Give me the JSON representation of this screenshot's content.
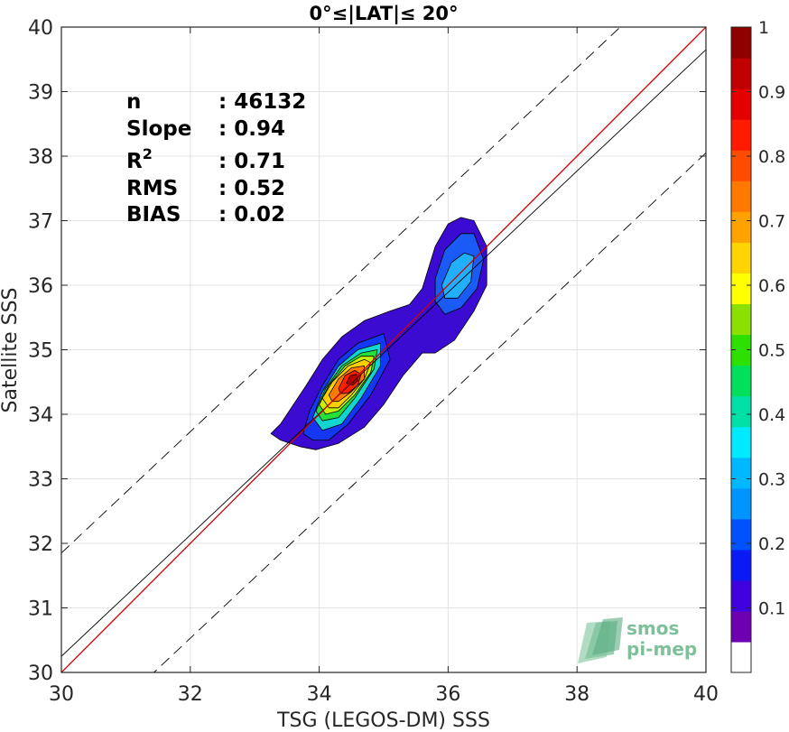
{
  "chart_data": {
    "type": "contour",
    "title": "0°≤|LAT|≤ 20°",
    "xlabel": "TSG (LEGOS-DM) SSS",
    "ylabel": "Satellite SSS",
    "xlim": [
      30,
      40
    ],
    "ylim": [
      30,
      40
    ],
    "xticks": [
      30,
      32,
      34,
      36,
      38,
      40
    ],
    "yticks": [
      30,
      31,
      32,
      33,
      34,
      35,
      36,
      37,
      38,
      39,
      40
    ],
    "grid": true,
    "colorbar": {
      "ticks": [
        0.1,
        0.2,
        0.3,
        0.4,
        0.5,
        0.6,
        0.7,
        0.8,
        0.9,
        1
      ],
      "labels": [
        "0.1",
        "0.2",
        "0.3",
        "0.4",
        "0.5",
        "0.6",
        "0.7",
        "0.8",
        "0.9",
        "1"
      ],
      "range": [
        0,
        1
      ],
      "colors": [
        "#ffffff",
        "#6d00b0",
        "#4000e0",
        "#0a1af5",
        "#0052ff",
        "#0094ff",
        "#00b8ff",
        "#00eaff",
        "#00dfa6",
        "#00e05a",
        "#2ee000",
        "#8be000",
        "#ffff00",
        "#ffd400",
        "#ffa200",
        "#ff7800",
        "#ff4d00",
        "#ff1a00",
        "#e50000",
        "#c00000",
        "#8f0000"
      ]
    },
    "stats": [
      {
        "label": "n",
        "value": ": 46132"
      },
      {
        "label": "Slope",
        "value": ": 0.94"
      },
      {
        "label": "R",
        "sup": "2",
        "value": ": 0.71"
      },
      {
        "label": "RMS",
        "value": ": 0.52"
      },
      {
        "label": "BIAS",
        "value": ": 0.02"
      }
    ],
    "lines": {
      "one_to_one": {
        "slope": 1,
        "intercept": 0,
        "color": "#cc0000"
      },
      "regression": {
        "slope": 0.94,
        "intercept": 2.05,
        "color": "#000000"
      },
      "bounds_offset": 1.6
    },
    "contours": [
      {
        "level": 0.05,
        "color": "#3b0bd2",
        "points": [
          [
            33.25,
            33.7
          ],
          [
            33.4,
            33.85
          ],
          [
            33.6,
            34.15
          ],
          [
            33.8,
            34.45
          ],
          [
            34.05,
            34.85
          ],
          [
            34.35,
            35.2
          ],
          [
            34.7,
            35.45
          ],
          [
            35.1,
            35.6
          ],
          [
            35.4,
            35.7
          ],
          [
            35.6,
            35.95
          ],
          [
            35.8,
            36.6
          ],
          [
            36.0,
            36.95
          ],
          [
            36.2,
            37.05
          ],
          [
            36.4,
            37.0
          ],
          [
            36.6,
            36.6
          ],
          [
            36.6,
            36.0
          ],
          [
            36.4,
            35.6
          ],
          [
            36.1,
            35.15
          ],
          [
            35.8,
            34.95
          ],
          [
            35.6,
            34.95
          ],
          [
            35.3,
            34.6
          ],
          [
            35.0,
            34.15
          ],
          [
            34.7,
            33.8
          ],
          [
            34.3,
            33.55
          ],
          [
            33.95,
            33.45
          ],
          [
            33.7,
            33.5
          ],
          [
            33.4,
            33.6
          ]
        ]
      },
      {
        "level": 0.1,
        "color": "#1436f5",
        "points": [
          [
            33.75,
            33.7
          ],
          [
            33.85,
            34.05
          ],
          [
            34.05,
            34.45
          ],
          [
            34.3,
            34.85
          ],
          [
            34.6,
            35.1
          ],
          [
            35.0,
            35.25
          ],
          [
            35.1,
            34.85
          ],
          [
            34.8,
            34.3
          ],
          [
            34.45,
            33.85
          ],
          [
            34.15,
            33.6
          ],
          [
            33.9,
            33.6
          ]
        ]
      },
      {
        "level": 0.1,
        "color": "#1a5af5",
        "points": [
          [
            35.8,
            36.1
          ],
          [
            35.95,
            36.55
          ],
          [
            36.2,
            36.8
          ],
          [
            36.4,
            36.8
          ],
          [
            36.55,
            36.4
          ],
          [
            36.45,
            35.95
          ],
          [
            36.2,
            35.65
          ],
          [
            35.95,
            35.55
          ],
          [
            35.8,
            35.75
          ]
        ]
      },
      {
        "level": 0.3,
        "color": "#20b0ff",
        "points": [
          [
            35.9,
            36.0
          ],
          [
            36.05,
            36.35
          ],
          [
            36.25,
            36.5
          ],
          [
            36.4,
            36.45
          ],
          [
            36.35,
            36.05
          ],
          [
            36.15,
            35.8
          ],
          [
            35.95,
            35.8
          ]
        ]
      },
      {
        "level": 0.4,
        "color": "#10d6cf",
        "points": [
          [
            33.9,
            33.95
          ],
          [
            34.05,
            34.35
          ],
          [
            34.3,
            34.75
          ],
          [
            34.6,
            35.0
          ],
          [
            34.95,
            35.1
          ],
          [
            34.95,
            34.75
          ],
          [
            34.65,
            34.25
          ],
          [
            34.35,
            33.85
          ],
          [
            34.05,
            33.75
          ]
        ]
      },
      {
        "level": 0.5,
        "color": "#25e03a",
        "points": [
          [
            33.95,
            34.05
          ],
          [
            34.1,
            34.4
          ],
          [
            34.35,
            34.75
          ],
          [
            34.65,
            34.95
          ],
          [
            34.9,
            35.0
          ],
          [
            34.85,
            34.7
          ],
          [
            34.55,
            34.25
          ],
          [
            34.3,
            33.95
          ],
          [
            34.05,
            33.9
          ]
        ]
      },
      {
        "level": 0.6,
        "color": "#c8f000",
        "points": [
          [
            34.0,
            34.15
          ],
          [
            34.15,
            34.45
          ],
          [
            34.4,
            34.75
          ],
          [
            34.65,
            34.9
          ],
          [
            34.85,
            34.9
          ],
          [
            34.8,
            34.65
          ],
          [
            34.55,
            34.3
          ],
          [
            34.3,
            34.05
          ],
          [
            34.1,
            34.0
          ]
        ]
      },
      {
        "level": 0.7,
        "color": "#ffd000",
        "points": [
          [
            34.05,
            34.25
          ],
          [
            34.2,
            34.5
          ],
          [
            34.45,
            34.75
          ],
          [
            34.7,
            34.85
          ],
          [
            34.8,
            34.8
          ],
          [
            34.7,
            34.55
          ],
          [
            34.5,
            34.3
          ],
          [
            34.3,
            34.1
          ],
          [
            34.15,
            34.1
          ]
        ]
      },
      {
        "level": 0.8,
        "color": "#ff7a00",
        "points": [
          [
            34.15,
            34.3
          ],
          [
            34.3,
            34.55
          ],
          [
            34.5,
            34.72
          ],
          [
            34.7,
            34.75
          ],
          [
            34.7,
            34.55
          ],
          [
            34.5,
            34.35
          ],
          [
            34.3,
            34.2
          ],
          [
            34.2,
            34.2
          ]
        ]
      },
      {
        "level": 0.9,
        "color": "#ff2000",
        "points": [
          [
            34.3,
            34.4
          ],
          [
            34.4,
            34.6
          ],
          [
            34.55,
            34.68
          ],
          [
            34.65,
            34.62
          ],
          [
            34.6,
            34.45
          ],
          [
            34.45,
            34.33
          ],
          [
            34.33,
            34.32
          ]
        ]
      },
      {
        "level": 1.0,
        "color": "#b40000",
        "points": [
          [
            34.42,
            34.48
          ],
          [
            34.48,
            34.6
          ],
          [
            34.58,
            34.62
          ],
          [
            34.6,
            34.52
          ],
          [
            34.52,
            34.45
          ]
        ]
      }
    ]
  },
  "logo": {
    "line1": "smos",
    "line2": "pi-mep"
  }
}
